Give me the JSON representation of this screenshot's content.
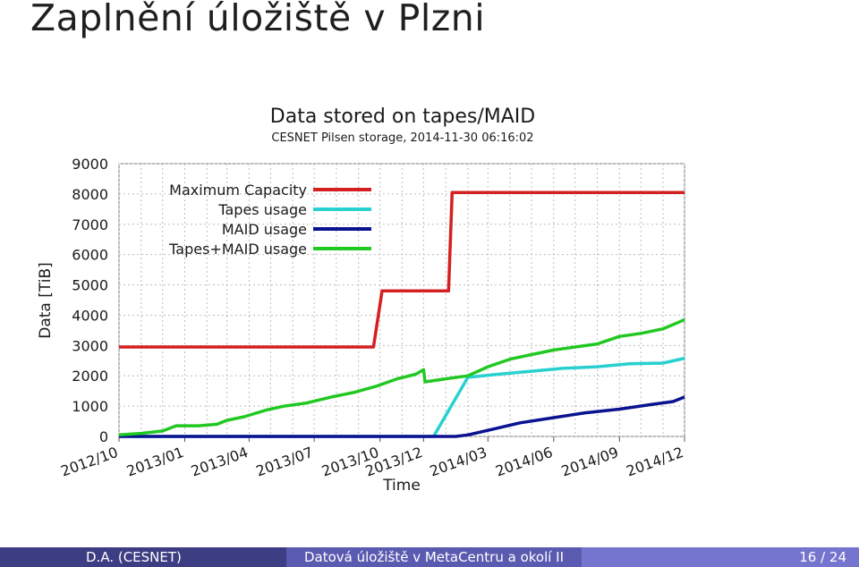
{
  "slide": {
    "title": "Zaplnění úložiště v Plzni"
  },
  "footer": {
    "author": "D.A.  (CESNET)",
    "talk": "Datová úložiště v MetaCentru a okolí II",
    "page": "16 / 24"
  },
  "colors": {
    "max_capacity": "#d42020",
    "tapes": "#28d0d0",
    "maid": "#0a1290",
    "tapes_maid": "#22c822",
    "grid": "#bdbdbd",
    "text": "#1a1a1a"
  },
  "chart_data": {
    "type": "line",
    "title": "Data stored on tapes/MAID",
    "subtitle": "CESNET Pilsen storage, 2014-11-30 06:16:02",
    "xlabel": "Time",
    "ylabel": "Data [TiB]",
    "ylim": [
      0,
      9000
    ],
    "yticks": [
      0,
      1000,
      2000,
      3000,
      4000,
      5000,
      6000,
      7000,
      8000,
      9000
    ],
    "xlim": [
      "2012-10-01",
      "2014-12-01"
    ],
    "xticks": [
      "2012/10",
      "2013/01",
      "2013/04",
      "2013/07",
      "2013/10",
      "2013/12",
      "2014/03",
      "2014/06",
      "2014/09",
      "2014/12"
    ],
    "grid": true,
    "legend_position": "top-left",
    "series": [
      {
        "name": "Maximum Capacity",
        "color": "#d42020",
        "points": [
          [
            "2012-10-01",
            2950
          ],
          [
            "2013-09-22",
            2950
          ],
          [
            "2013-10-04",
            4800
          ],
          [
            "2014-01-05",
            4800
          ],
          [
            "2014-01-10",
            8050
          ],
          [
            "2014-12-01",
            8050
          ]
        ]
      },
      {
        "name": "Tapes usage",
        "color": "#28d0d0",
        "points": [
          [
            "2012-10-01",
            0
          ],
          [
            "2013-12-15",
            0
          ],
          [
            "2014-02-01",
            1950
          ],
          [
            "2014-03-15",
            2050
          ],
          [
            "2014-05-01",
            2150
          ],
          [
            "2014-06-15",
            2250
          ],
          [
            "2014-08-01",
            2300
          ],
          [
            "2014-09-15",
            2400
          ],
          [
            "2014-11-01",
            2420
          ],
          [
            "2014-12-01",
            2580
          ]
        ]
      },
      {
        "name": "MAID usage",
        "color": "#0a1290",
        "points": [
          [
            "2012-10-01",
            0
          ],
          [
            "2014-01-15",
            0
          ],
          [
            "2014-02-01",
            50
          ],
          [
            "2014-03-01",
            200
          ],
          [
            "2014-04-15",
            450
          ],
          [
            "2014-06-01",
            620
          ],
          [
            "2014-07-15",
            780
          ],
          [
            "2014-09-01",
            900
          ],
          [
            "2014-10-15",
            1050
          ],
          [
            "2014-11-15",
            1150
          ],
          [
            "2014-12-01",
            1300
          ]
        ]
      },
      {
        "name": "Tapes+MAID usage",
        "color": "#22c822",
        "points": [
          [
            "2012-10-01",
            50
          ],
          [
            "2012-11-01",
            100
          ],
          [
            "2012-12-01",
            180
          ],
          [
            "2012-12-20",
            350
          ],
          [
            "2013-01-20",
            350
          ],
          [
            "2013-02-15",
            400
          ],
          [
            "2013-03-01",
            530
          ],
          [
            "2013-03-25",
            650
          ],
          [
            "2013-04-25",
            870
          ],
          [
            "2013-05-20",
            1000
          ],
          [
            "2013-06-20",
            1100
          ],
          [
            "2013-07-25",
            1300
          ],
          [
            "2013-08-25",
            1450
          ],
          [
            "2013-09-25",
            1650
          ],
          [
            "2013-10-25",
            1900
          ],
          [
            "2013-11-20",
            2050
          ],
          [
            "2013-12-01",
            2200
          ],
          [
            "2013-12-03",
            1800
          ],
          [
            "2014-01-01",
            1900
          ],
          [
            "2014-02-01",
            2000
          ],
          [
            "2014-03-01",
            2300
          ],
          [
            "2014-04-01",
            2550
          ],
          [
            "2014-05-01",
            2700
          ],
          [
            "2014-06-01",
            2850
          ],
          [
            "2014-07-01",
            2950
          ],
          [
            "2014-08-01",
            3050
          ],
          [
            "2014-09-01",
            3300
          ],
          [
            "2014-10-01",
            3400
          ],
          [
            "2014-11-01",
            3550
          ],
          [
            "2014-12-01",
            3850
          ]
        ]
      }
    ]
  }
}
